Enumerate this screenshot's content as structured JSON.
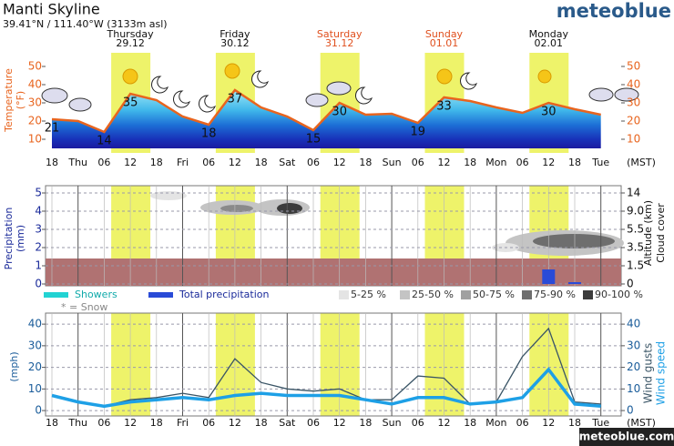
{
  "header": {
    "title": "Manti Skyline",
    "subtitle": "39.41°N / 111.40°W (3133m asl)",
    "logo": "meteoblue"
  },
  "footer": "meteoblue.com",
  "days": [
    {
      "name": "Thursday",
      "date": "29.12",
      "color": "#111111"
    },
    {
      "name": "Friday",
      "date": "30.12",
      "color": "#111111"
    },
    {
      "name": "Saturday",
      "date": "31.12",
      "color": "#e0501e"
    },
    {
      "name": "Sunday",
      "date": "01.01",
      "color": "#e0501e"
    },
    {
      "name": "Monday",
      "date": "02.01",
      "color": "#111111"
    }
  ],
  "chart_data": [
    {
      "type": "line",
      "ylabel": [
        "Temperature",
        "(°F)"
      ],
      "xlabel": "(MST)",
      "categories": [
        "18",
        "Thu",
        "06",
        "12",
        "18",
        "Fri",
        "06",
        "12",
        "18",
        "Sat",
        "06",
        "12",
        "18",
        "Sun",
        "06",
        "12",
        "18",
        "Mon",
        "06",
        "12",
        "18",
        "Tue"
      ],
      "values": [
        21,
        20,
        14,
        35,
        31.5,
        22.5,
        18,
        37,
        27.5,
        22.5,
        15,
        30,
        23.5,
        24,
        19,
        33,
        31,
        27.5,
        24.5,
        30,
        26.5,
        23.5
      ],
      "value_labels": [
        "21",
        null,
        "14",
        "35",
        null,
        null,
        "18",
        "37",
        null,
        null,
        "15",
        "30",
        null,
        null,
        "19",
        "33",
        null,
        null,
        null,
        "30",
        null,
        null
      ],
      "color": "#e8641e",
      "ylim": [
        5,
        55
      ],
      "yticks": [
        10,
        20,
        30,
        40,
        50
      ],
      "y2lim": [
        5,
        55
      ],
      "y2ticks": [
        10,
        20,
        30,
        40,
        50
      ]
    },
    {
      "type": "bar",
      "ylabel": [
        "Precipitation",
        "(mm)"
      ],
      "y2label": [
        "Altitude (km)",
        "Cloud cover"
      ],
      "series": [
        {
          "name": "Total precipitation",
          "color": "#2a4bd7",
          "values": [
            0,
            0,
            0,
            0,
            0,
            0,
            0,
            0,
            0,
            0,
            0,
            0,
            0,
            0,
            0,
            0,
            0,
            0,
            0,
            0.8,
            0.1,
            0
          ]
        },
        {
          "name": "Showers",
          "color": "#22d3d3",
          "values": [
            0,
            0,
            0,
            0,
            0,
            0,
            0,
            0,
            0,
            0,
            0,
            0,
            0,
            0,
            0,
            0,
            0,
            0,
            0,
            0,
            0,
            0
          ]
        }
      ],
      "snow_note": "* = Snow",
      "cloud_cover_legend": [
        {
          "label": "5-25 %",
          "color": "#e4e4e4"
        },
        {
          "label": "25-50 %",
          "color": "#c4c4c4"
        },
        {
          "label": "50-75 %",
          "color": "#a0a0a0"
        },
        {
          "label": "75-90 %",
          "color": "#6e6e6e"
        },
        {
          "label": "90-100 %",
          "color": "#3c3c3c"
        }
      ],
      "ylim": [
        0,
        5.2
      ],
      "yticks": [
        0,
        1,
        2,
        3,
        4,
        5
      ],
      "y2ticks": [
        0,
        1.5,
        3.5,
        5.5,
        {
          "value": 9,
          "label": "9.0"
        },
        14
      ],
      "grid": true
    },
    {
      "type": "line",
      "ylabel": [
        "(mph)"
      ],
      "xlabel": "(MST)",
      "categories": [
        "18",
        "Thu",
        "06",
        "12",
        "18",
        "Fri",
        "06",
        "12",
        "18",
        "Sat",
        "06",
        "12",
        "18",
        "Sun",
        "06",
        "12",
        "18",
        "Mon",
        "06",
        "12",
        "18",
        "Tue"
      ],
      "series": [
        {
          "name": "Wind gusts",
          "color": "#3a5566",
          "width": 1.3,
          "values": [
            null,
            null,
            2,
            5,
            6,
            8,
            6,
            24,
            13,
            10,
            9,
            10,
            5,
            5,
            16,
            15,
            3,
            4,
            25,
            38,
            4,
            3
          ]
        },
        {
          "name": "Wind speed",
          "color": "#1ea0e6",
          "width": 3.5,
          "values": [
            7,
            4,
            2,
            4,
            5,
            6,
            5,
            7,
            8,
            7,
            7,
            7,
            5,
            3,
            6,
            6,
            3,
            4,
            6,
            19,
            3,
            2
          ]
        }
      ],
      "ylim": [
        -2.5,
        43
      ],
      "yticks": [
        0,
        10,
        20,
        30,
        40
      ],
      "y2lim": [
        -2.5,
        43
      ],
      "y2ticks": [
        0,
        10,
        20,
        30,
        40
      ],
      "grid": true
    }
  ]
}
